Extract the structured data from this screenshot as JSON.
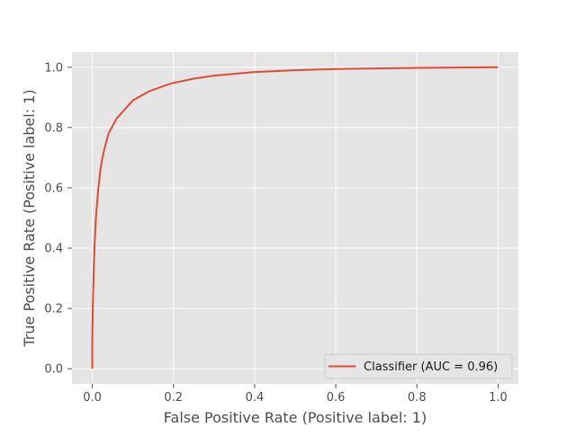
{
  "chart_data": {
    "type": "line",
    "title": "",
    "xlabel": "False Positive Rate (Positive label: 1)",
    "ylabel": "True Positive Rate (Positive label: 1)",
    "xlim": [
      -0.05,
      1.05
    ],
    "ylim": [
      -0.05,
      1.05
    ],
    "xticks": [
      0.0,
      0.2,
      0.4,
      0.6,
      0.8,
      1.0
    ],
    "yticks": [
      0.0,
      0.2,
      0.4,
      0.6,
      0.8,
      1.0
    ],
    "xtick_labels": [
      "0.0",
      "0.2",
      "0.4",
      "0.6",
      "0.8",
      "1.0"
    ],
    "ytick_labels": [
      "0.0",
      "0.2",
      "0.4",
      "0.6",
      "0.8",
      "1.0"
    ],
    "grid": true,
    "legend_position": "bottom-right",
    "series": [
      {
        "name": "Classifier (AUC = 0.96)",
        "color": "#e24a33",
        "x": [
          0.0,
          0.0,
          0.002,
          0.004,
          0.006,
          0.008,
          0.01,
          0.015,
          0.02,
          0.025,
          0.03,
          0.04,
          0.05,
          0.06,
          0.07,
          0.08,
          0.09,
          0.1,
          0.12,
          0.14,
          0.16,
          0.18,
          0.2,
          0.25,
          0.3,
          0.35,
          0.4,
          0.5,
          0.6,
          0.7,
          0.8,
          0.9,
          1.0
        ],
        "y": [
          0.0,
          0.1,
          0.25,
          0.35,
          0.42,
          0.48,
          0.52,
          0.6,
          0.66,
          0.7,
          0.73,
          0.78,
          0.805,
          0.83,
          0.845,
          0.86,
          0.875,
          0.89,
          0.905,
          0.92,
          0.93,
          0.94,
          0.948,
          0.962,
          0.972,
          0.978,
          0.984,
          0.99,
          0.994,
          0.996,
          0.998,
          0.999,
          1.0
        ]
      }
    ]
  }
}
